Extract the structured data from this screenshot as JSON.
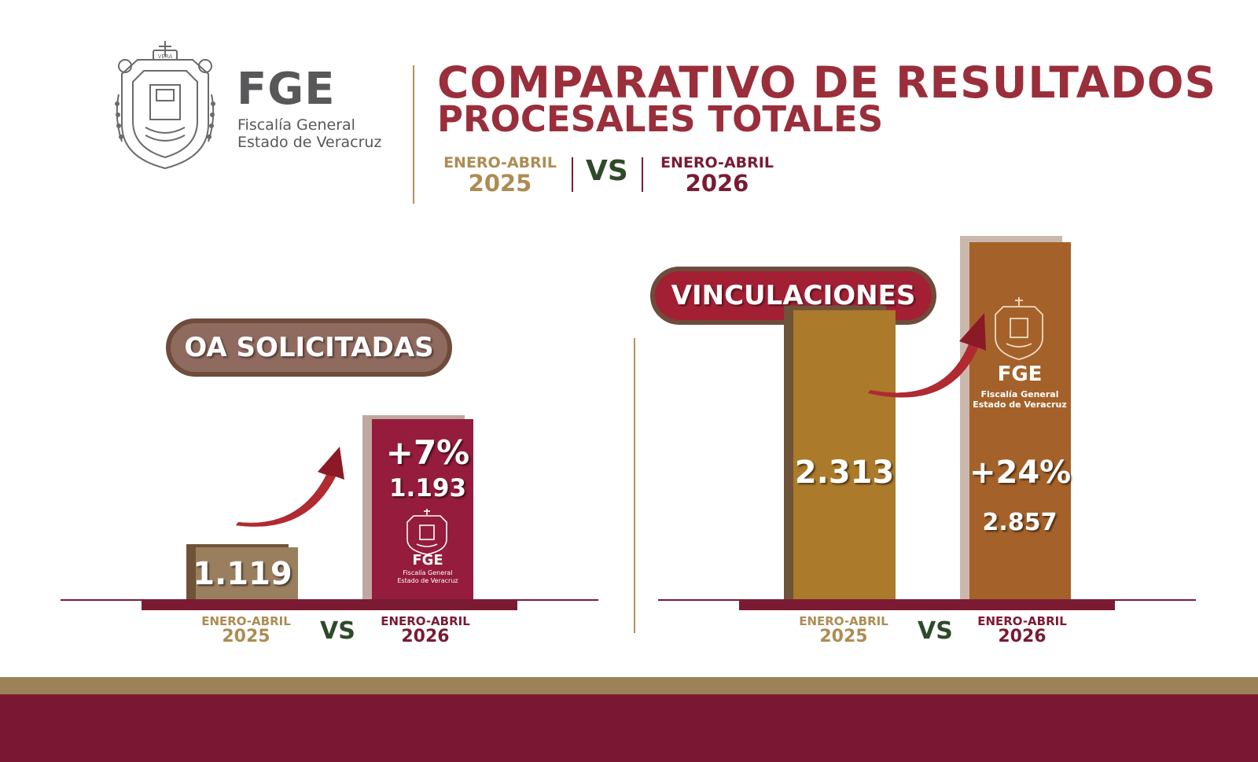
{
  "header": {
    "org_acronym": "FGE",
    "org_name_line1": "Fiscalía General",
    "org_name_line2": "Estado de Veracruz",
    "seal_text": "VERA",
    "title_line1": "COMPARATIVO DE RESULTADOS",
    "title_line2": "PROCESALES TOTALES",
    "period_a_label": "ENERO-ABRIL",
    "period_a_year": "2025",
    "vs": "VS",
    "period_b_label": "ENERO-ABRIL",
    "period_b_year": "2026"
  },
  "bar_logo": {
    "acronym": "FGE",
    "line1": "Fiscalía General",
    "line2": "Estado de Veracruz"
  },
  "colors": {
    "wine": "#7a1b33",
    "gold": "#ad8c53",
    "title_red": "#9a2e3a",
    "vs_green": "#2e4a2a",
    "taupe": "#9a7f5f",
    "mustard": "#ab7a2a",
    "rust": "#a4622a"
  },
  "chart_data": [
    {
      "type": "bar",
      "title": "OA SOLICITADAS",
      "categories": [
        "ENERO-ABRIL 2025",
        "ENERO-ABRIL 2026"
      ],
      "category_labels": [
        {
          "label": "ENERO-ABRIL",
          "year": "2025"
        },
        {
          "label": "ENERO-ABRIL",
          "year": "2026"
        }
      ],
      "values": [
        1119,
        1193
      ],
      "value_labels": [
        "1.119",
        "1.193"
      ],
      "change_label": "+7%",
      "vs": "VS"
    },
    {
      "type": "bar",
      "title": "VINCULACIONES",
      "categories": [
        "ENERO-ABRIL 2025",
        "ENERO-ABRIL 2026"
      ],
      "category_labels": [
        {
          "label": "ENERO-ABRIL",
          "year": "2025"
        },
        {
          "label": "ENERO-ABRIL",
          "year": "2026"
        }
      ],
      "values": [
        2313,
        2857
      ],
      "value_labels": [
        "2.313",
        "2.857"
      ],
      "change_label": "+24%",
      "vs": "VS"
    }
  ]
}
